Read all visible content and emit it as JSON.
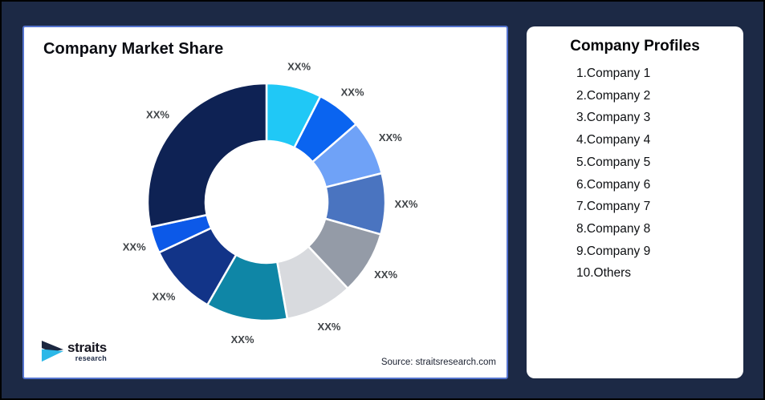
{
  "frame": {
    "background_color": "#1C2945",
    "outer_border_color": "#000000",
    "card_border_color": "#5473CE"
  },
  "market_share_card": {
    "title": "Company Market Share",
    "source_note": "Source: straitsresearch.com",
    "logo": {
      "brand": "straits",
      "sub_brand": "research",
      "icon_navy": "#1B2740",
      "icon_cyan": "#2CB8E8"
    }
  },
  "chart_data": {
    "type": "pie",
    "subtype": "donut",
    "title": "Company Market Share",
    "start_angle_deg": 0,
    "direction": "clockwise",
    "inner_radius_ratio": 0.51,
    "legend_position": "none",
    "segments": [
      "Company 1",
      "Company 2",
      "Company 3",
      "Company 4",
      "Company 5",
      "Company 6",
      "Company 7",
      "Company 8",
      "Company 9",
      "Others"
    ],
    "labels": [
      "XX%",
      "XX%",
      "XX%",
      "XX%",
      "XX%",
      "XX%",
      "XX%",
      "XX%",
      "XX%",
      "XX%"
    ],
    "values": [
      7.5,
      6.1,
      7.5,
      8.3,
      8.6,
      9.2,
      11.1,
      9.7,
      3.6,
      28.4
    ],
    "colors": [
      "#20C8F6",
      "#0A64F0",
      "#6FA2F7",
      "#4A74C0",
      "#949BA7",
      "#D8DADE",
      "#0F86A6",
      "#123488",
      "#0C59E8",
      "#0E2254"
    ],
    "gap_color": "#FFFFFF",
    "label_color": "#3F4347"
  },
  "company_profiles_card": {
    "title": "Company Profiles",
    "items": [
      "1.Company 1",
      "2.Company 2",
      "3.Company 3",
      "4.Company 4",
      "5.Company 5",
      "6.Company 6",
      "7.Company 7",
      "8.Company 8",
      "9.Company 9",
      "10.Others"
    ]
  }
}
